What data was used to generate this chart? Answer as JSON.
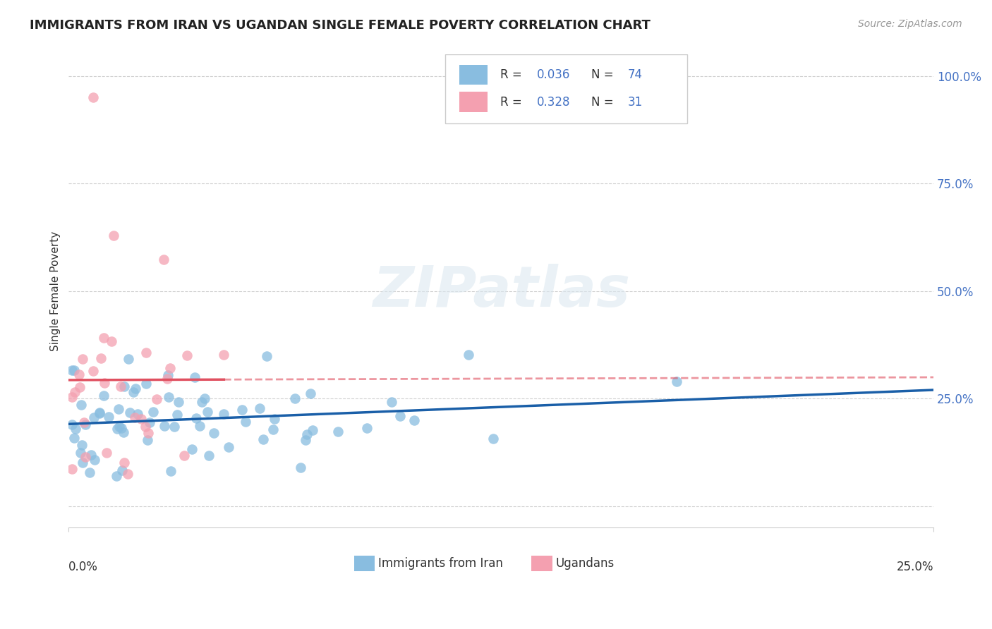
{
  "title": "IMMIGRANTS FROM IRAN VS UGANDAN SINGLE FEMALE POVERTY CORRELATION CHART",
  "source": "Source: ZipAtlas.com",
  "ylabel": "Single Female Poverty",
  "xlim": [
    0.0,
    0.25
  ],
  "ylim": [
    -0.05,
    1.05
  ],
  "yticks": [
    0.0,
    0.25,
    0.5,
    0.75,
    1.0
  ],
  "ytick_labels": [
    "",
    "25.0%",
    "50.0%",
    "75.0%",
    "100.0%"
  ],
  "legend_r1": "0.036",
  "legend_n1": "74",
  "legend_r2": "0.328",
  "legend_n2": "31",
  "color_blue": "#89bde0",
  "color_pink": "#f4a0b0",
  "color_blue_line": "#1a5fa8",
  "color_pink_line": "#e05060",
  "color_accent": "#4472c4",
  "grid_color": "#cccccc",
  "background_color": "#ffffff"
}
